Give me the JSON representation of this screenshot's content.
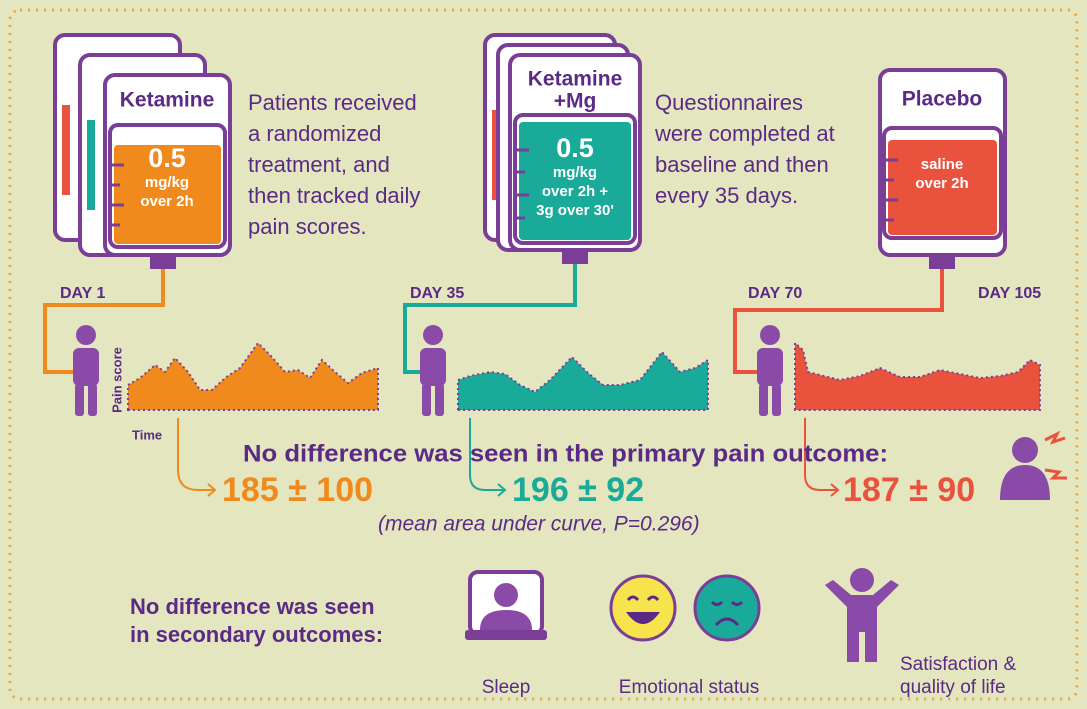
{
  "treatments": [
    {
      "name_lines": [
        "Ketamine"
      ],
      "dose": "0.5",
      "detail_lines": [
        "mg/kg",
        "over 2h"
      ],
      "result": "185 ± 100"
    },
    {
      "name_lines": [
        "Ketamine",
        "+Mg"
      ],
      "dose": "0.5",
      "detail_lines": [
        "mg/kg",
        "over 2h +",
        "3g over 30'"
      ],
      "result": "196 ± 92"
    },
    {
      "name_lines": [
        "Placebo"
      ],
      "detail_lines": [
        "saline",
        "over 2h"
      ],
      "result": "187 ± 90"
    }
  ],
  "descriptions": [
    [
      "Patients received",
      "a randomized",
      "treatment, and",
      "then tracked daily",
      "pain scores."
    ],
    [
      "Questionnaires",
      "were completed at",
      "baseline and then",
      "every 35 days."
    ]
  ],
  "timeline": [
    "DAY 1",
    "DAY 35",
    "DAY 70",
    "DAY 105"
  ],
  "axes": {
    "y": "Pain score",
    "x": "Time"
  },
  "primary_outcome": "No difference was seen in the primary pain outcome:",
  "note": "(mean area under curve, P=0.296)",
  "secondary": {
    "heading_lines": [
      "No difference was seen",
      "in secondary outcomes:"
    ],
    "items": [
      {
        "label_lines": [
          "Sleep"
        ]
      },
      {
        "label_lines": [
          "Emotional status"
        ]
      },
      {
        "label_lines": [
          "Satisfaction &",
          "quality of life"
        ]
      }
    ]
  }
}
